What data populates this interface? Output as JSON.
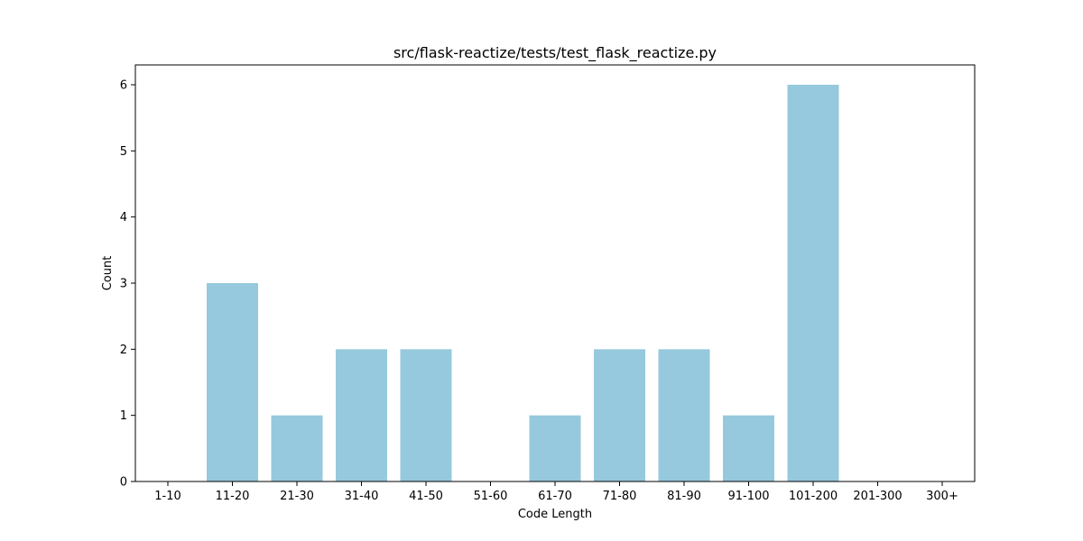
{
  "chart_data": {
    "type": "bar",
    "title": "src/flask-reactize/tests/test_flask_reactize.py",
    "xlabel": "Code Length",
    "ylabel": "Count",
    "categories": [
      "1-10",
      "11-20",
      "21-30",
      "31-40",
      "41-50",
      "51-60",
      "61-70",
      "71-80",
      "81-90",
      "91-100",
      "101-200",
      "201-300",
      "300+"
    ],
    "values": [
      0,
      3,
      1,
      2,
      2,
      0,
      1,
      2,
      2,
      1,
      6,
      0,
      0
    ],
    "ylim": [
      0,
      6.3
    ],
    "yticks": [
      "0",
      "1",
      "2",
      "3",
      "4",
      "5",
      "6"
    ],
    "bar_color": "#96c9dd",
    "grid": false,
    "legend": "none"
  }
}
